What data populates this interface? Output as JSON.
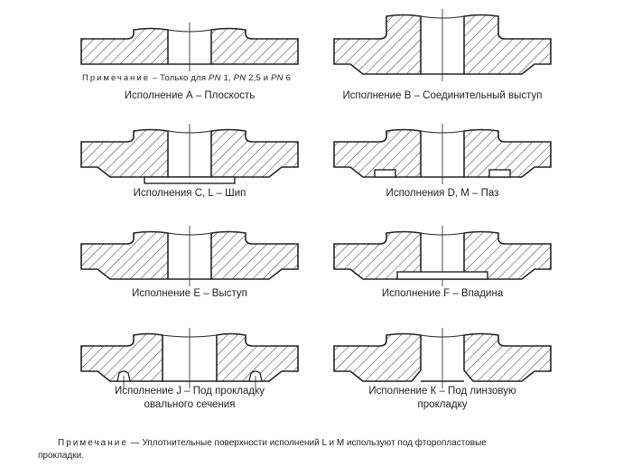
{
  "figures": [
    {
      "id": "A",
      "caption": "Исполнение А – Плоскость",
      "note": {
        "label": "Примечание",
        "text": " – Только для ",
        "pn": [
          "PN",
          " 1, ",
          "PN",
          " 2,5 и ",
          "PN",
          " 6"
        ]
      }
    },
    {
      "id": "B",
      "caption": "Исполнение В – Соединительный выступ"
    },
    {
      "id": "C",
      "caption": "Исполнения C, L – Шип"
    },
    {
      "id": "D",
      "caption": "Исполнения D, M – Паз"
    },
    {
      "id": "E",
      "caption": "Исполнение Е – Выступ"
    },
    {
      "id": "F",
      "caption": "Исполнение F – Впадина"
    },
    {
      "id": "J",
      "caption": "Исполнение J – Под прокладку",
      "caption2": "овального сечения"
    },
    {
      "id": "K",
      "caption": "Исполнение К – Под линзовую",
      "caption2": "прокладку"
    }
  ],
  "footnote": {
    "label": "Примечание",
    "text": " — Уплотнительные поверхности исполнений L и M используют под фторопластовые",
    "continuation": "прокладки."
  },
  "colors": {
    "line": "#222222",
    "background": "#ffffff"
  }
}
